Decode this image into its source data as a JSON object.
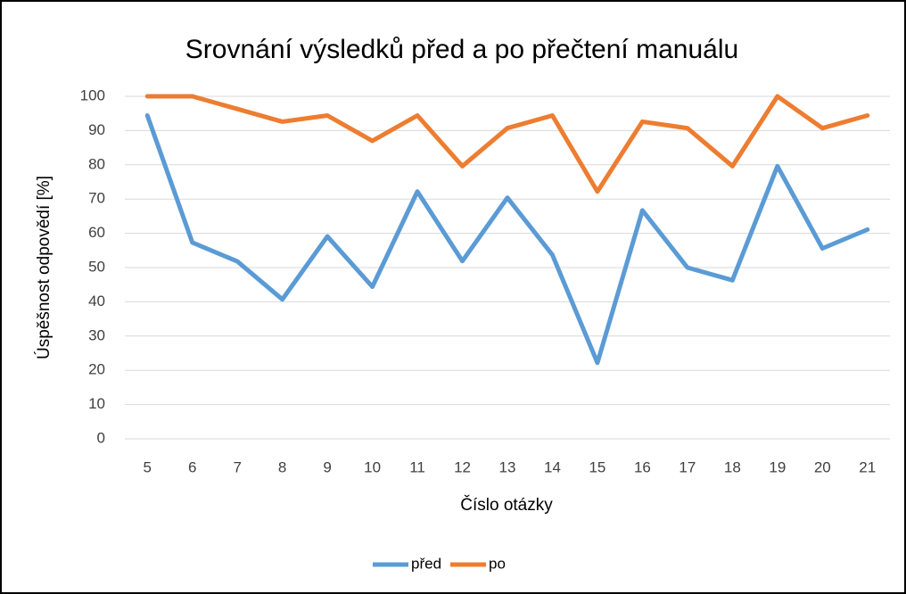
{
  "chart_data": {
    "type": "line",
    "title": "Srovnání výsledků před a po přečtení manuálu",
    "x_label": "Číslo otázky",
    "y_label": "Úspěšnost odpovědí [%]",
    "categories": [
      "5",
      "6",
      "7",
      "8",
      "9",
      "10",
      "11",
      "12",
      "13",
      "14",
      "15",
      "16",
      "17",
      "18",
      "19",
      "20",
      "21"
    ],
    "series": [
      {
        "name": "před",
        "color": "#5b9bd5",
        "values": [
          94.4,
          57.3,
          51.8,
          40.7,
          59.1,
          44.4,
          72.2,
          51.9,
          70.4,
          53.7,
          22.2,
          66.7,
          50,
          46.3,
          79.6,
          55.6,
          61.1
        ]
      },
      {
        "name": "po",
        "color": "#ed7d31",
        "values": [
          100,
          100,
          96.3,
          92.6,
          94.4,
          87,
          94.4,
          79.6,
          90.7,
          94.4,
          72.2,
          92.6,
          90.7,
          79.6,
          100,
          90.7,
          94.4
        ]
      }
    ],
    "ylim": [
      0,
      100
    ],
    "yticks": [
      0,
      10,
      20,
      30,
      40,
      50,
      60,
      70,
      80,
      90,
      100
    ],
    "grid": true,
    "legend": "bottom"
  }
}
